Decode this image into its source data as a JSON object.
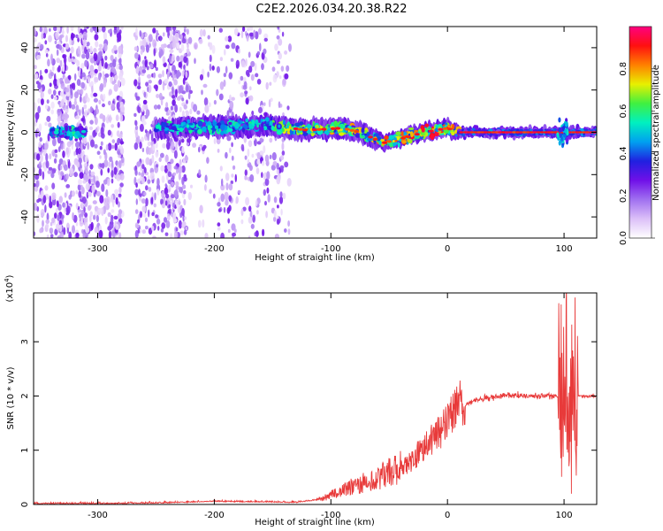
{
  "title": "C2E2.2026.034.20.38.R22",
  "chart_data": [
    {
      "type": "heatmap",
      "xlabel": "Height of straight line (km)",
      "ylabel": "Frequency (Hz)",
      "xlim": [
        -355,
        128
      ],
      "ylim": [
        -50,
        50
      ],
      "x_ticks": [
        -300,
        -200,
        -100,
        0,
        100
      ],
      "y_ticks": [
        -40,
        -20,
        0,
        20,
        40
      ],
      "colorbar": {
        "label": "Normalized spectral amplitude",
        "range": [
          0,
          1
        ],
        "ticks": [
          0.0,
          0.2,
          0.4,
          0.6,
          0.8
        ],
        "colors": [
          "#ffffff",
          "#dcc0f8",
          "#a070f0",
          "#7010e8",
          "#2020e0",
          "#00a0f0",
          "#00f0c0",
          "#40f040",
          "#e8f000",
          "#ff8000",
          "#ff1010",
          "#ff0080"
        ]
      },
      "ridge_centerline": [
        {
          "x": -250,
          "f": 2
        },
        {
          "x": -200,
          "f": 3
        },
        {
          "x": -150,
          "f": 3
        },
        {
          "x": -120,
          "f": 1
        },
        {
          "x": -90,
          "f": 2
        },
        {
          "x": -75,
          "f": 0
        },
        {
          "x": -55,
          "f": -5
        },
        {
          "x": -40,
          "f": -3
        },
        {
          "x": -20,
          "f": 0
        },
        {
          "x": 0,
          "f": 2
        },
        {
          "x": 10,
          "f": 0
        },
        {
          "x": 100,
          "f": 0
        },
        {
          "x": 128,
          "f": 0
        }
      ]
    },
    {
      "type": "line",
      "xlabel": "Height of straight line (km)",
      "ylabel": "SNR (10 * v/v)",
      "y_multiplier": "(x10",
      "y_multiplier_exp": "4",
      "xlim": [
        -355,
        128
      ],
      "ylim": [
        0,
        3.9
      ],
      "x_ticks": [
        -300,
        -200,
        -100,
        0,
        100
      ],
      "y_ticks": [
        0,
        1,
        2,
        3
      ],
      "series": [
        {
          "name": "SNR",
          "color": "#e83a3a",
          "x": [
            -355,
            -300,
            -250,
            -200,
            -160,
            -130,
            -110,
            -100,
            -90,
            -80,
            -70,
            -60,
            -50,
            -40,
            -30,
            -20,
            -10,
            0,
            10,
            20,
            30,
            40,
            50,
            60,
            70,
            80,
            90,
            98,
            102,
            105,
            108,
            112,
            128
          ],
          "values": [
            0.01,
            0.01,
            0.02,
            0.05,
            0.04,
            0.03,
            0.08,
            0.15,
            0.22,
            0.3,
            0.35,
            0.42,
            0.5,
            0.6,
            0.75,
            1.0,
            1.15,
            1.4,
            1.7,
            1.9,
            1.96,
            1.98,
            2.02,
            2.0,
            2.0,
            2.0,
            2.0,
            2.02,
            2.6,
            1.0,
            2.2,
            2.0,
            2.0
          ]
        }
      ]
    }
  ]
}
